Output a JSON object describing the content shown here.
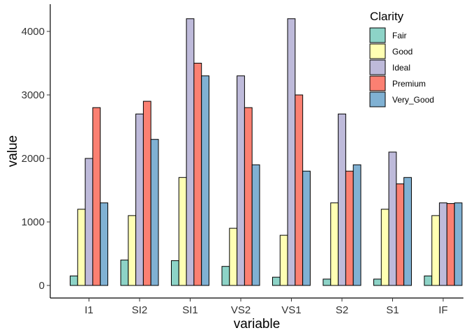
{
  "chart_data": {
    "type": "bar",
    "xlabel": "variable",
    "ylabel": "value",
    "ylim": [
      0,
      4400
    ],
    "yticks": [
      0,
      1000,
      2000,
      3000,
      4000
    ],
    "grid": false,
    "legend_title": "Clarity",
    "legend_position": "top-right",
    "categories": [
      "I1",
      "SI2",
      "SI1",
      "VS2",
      "VS1",
      "S2",
      "S1",
      "IF"
    ],
    "series": [
      {
        "name": "Fair",
        "color": "#8DD3C7",
        "values": [
          150,
          400,
          390,
          300,
          130,
          100,
          100,
          150
        ]
      },
      {
        "name": "Good",
        "color": "#FFFFB3",
        "values": [
          1200,
          1100,
          1700,
          900,
          790,
          1300,
          1200,
          1100
        ]
      },
      {
        "name": "Ideal",
        "color": "#BEBADA",
        "values": [
          2000,
          2700,
          4200,
          3300,
          4200,
          2700,
          2100,
          1300
        ]
      },
      {
        "name": "Premium",
        "color": "#FB8072",
        "values": [
          2800,
          2900,
          3500,
          2800,
          3000,
          1800,
          1600,
          1290
        ]
      },
      {
        "name": "Very_Good",
        "color": "#80B1D3",
        "values": [
          1300,
          2300,
          3300,
          1900,
          1800,
          1900,
          1700,
          1300
        ]
      }
    ]
  }
}
